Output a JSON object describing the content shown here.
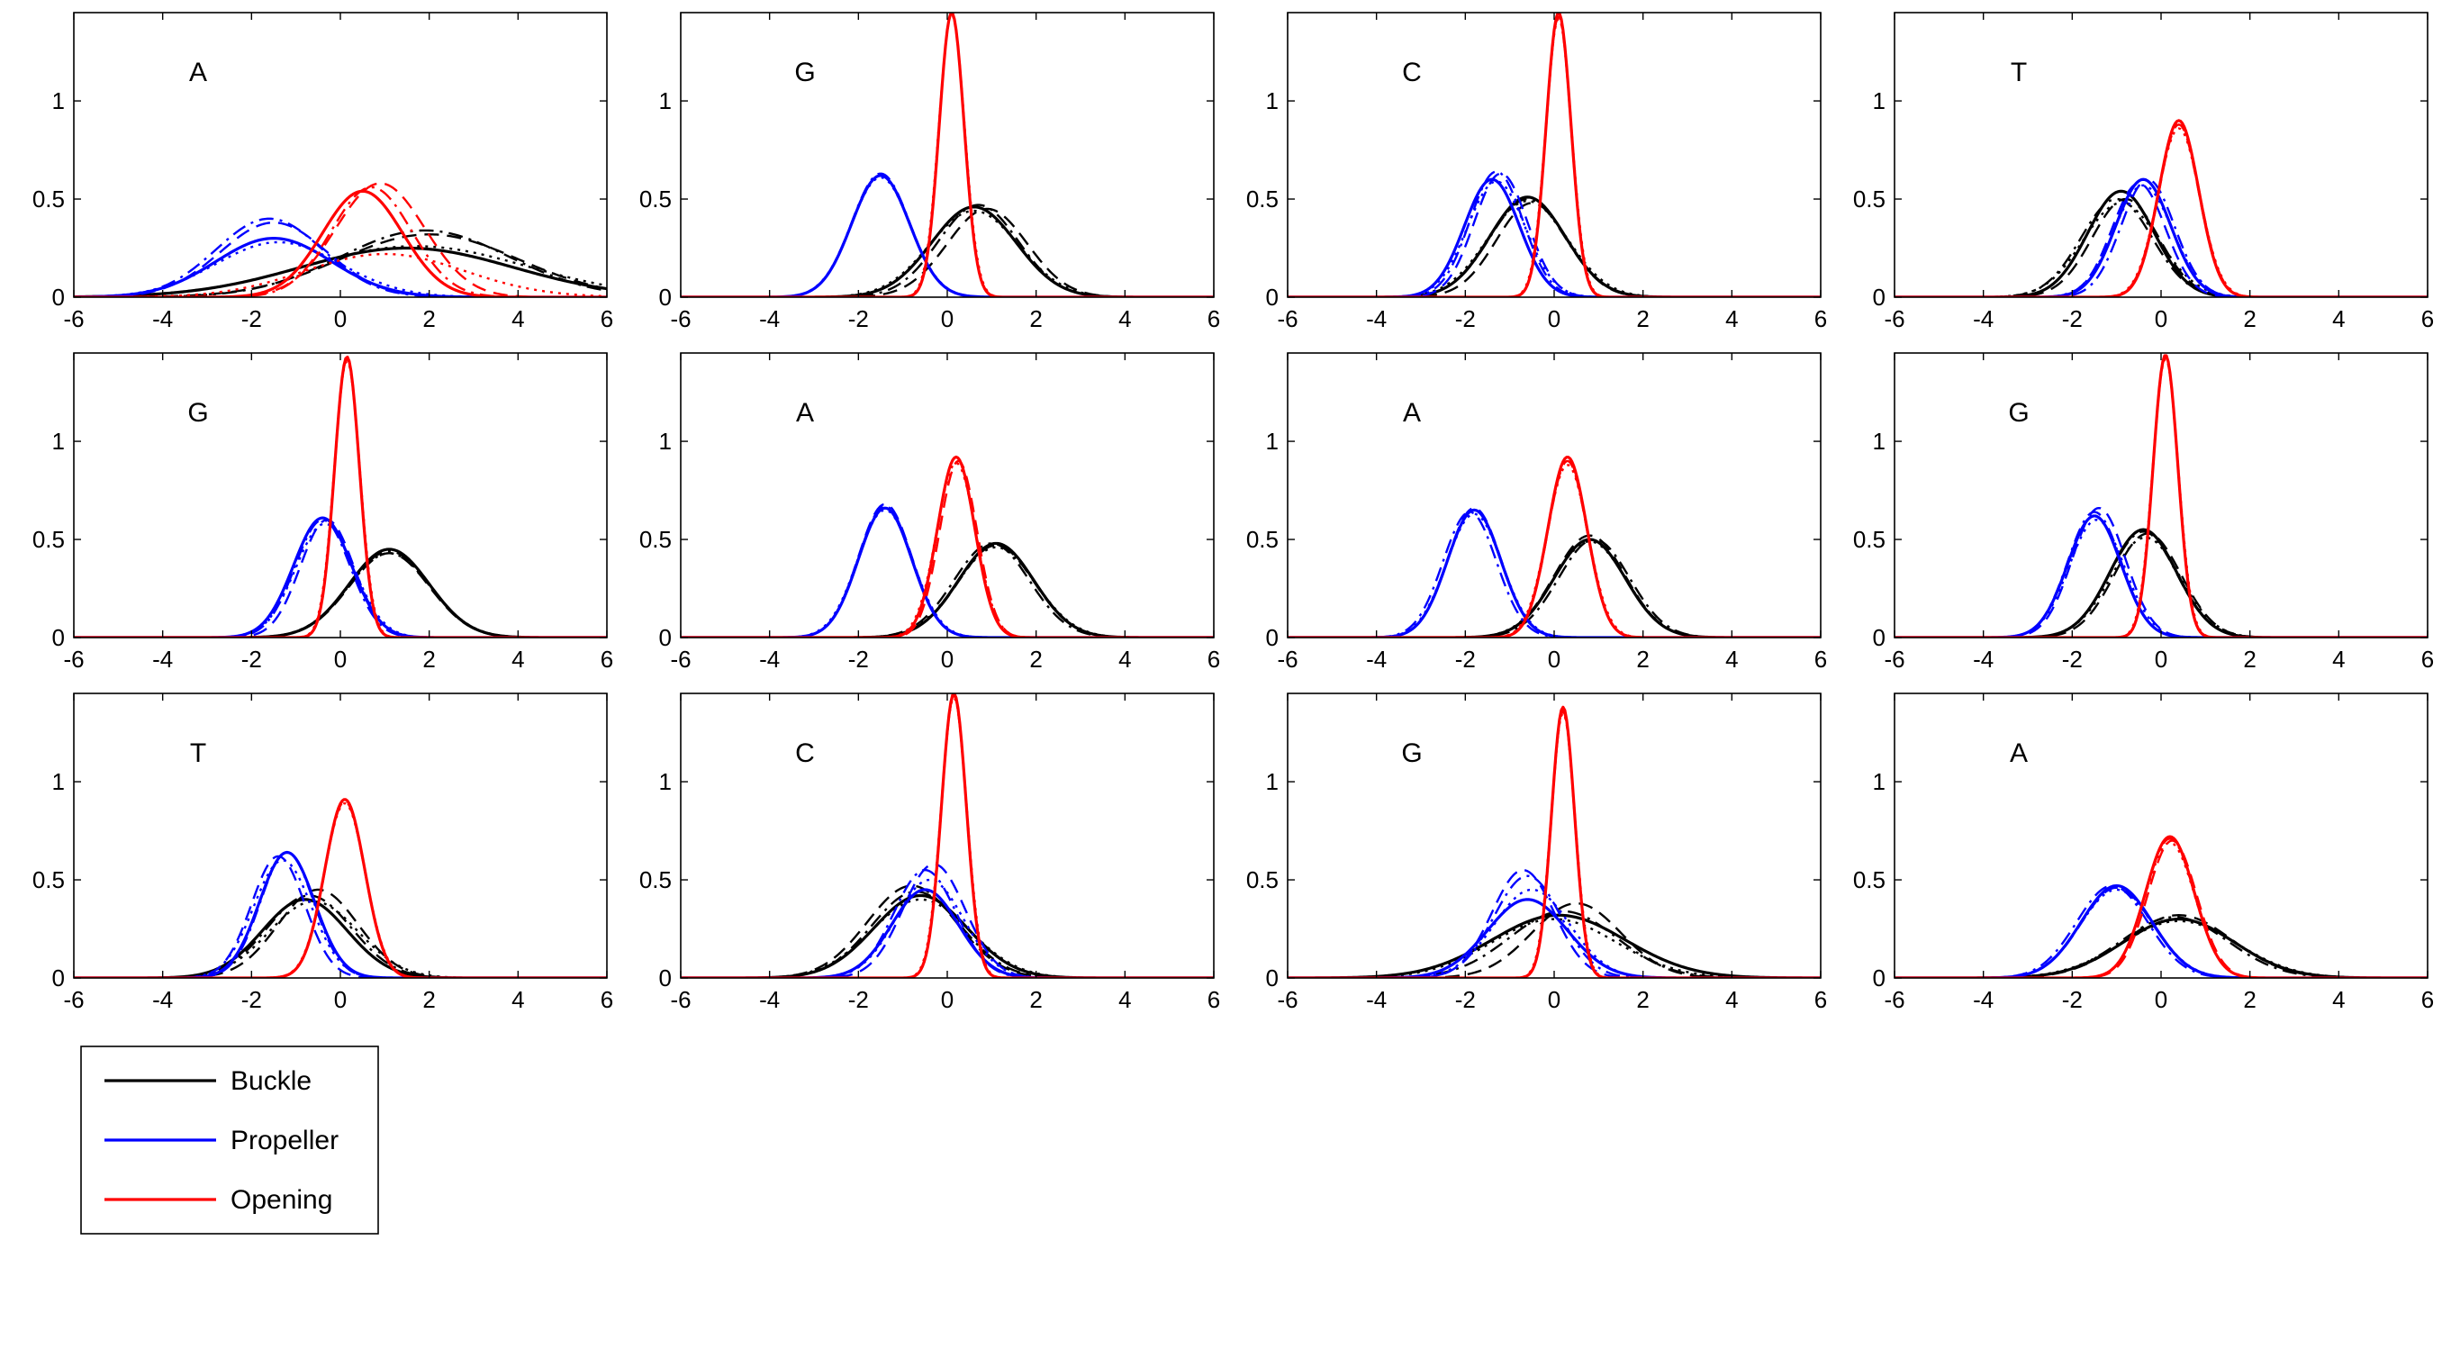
{
  "chart_data": {
    "type": "line",
    "layout": {
      "rows": 3,
      "cols": 4
    },
    "xlim": [
      -6,
      6
    ],
    "ylim": [
      0,
      1.45
    ],
    "xticks": [
      -6,
      -4,
      -2,
      0,
      2,
      4,
      6
    ],
    "yticks": [
      0,
      0.5,
      1
    ],
    "legend": {
      "placement": "bottom-left",
      "entries": [
        {
          "label": "Buckle",
          "color": "#000000"
        },
        {
          "label": "Propeller",
          "color": "#0000ff"
        },
        {
          "label": "Opening",
          "color": "#ff0000"
        }
      ]
    },
    "line_styles": [
      "solid",
      "dashed",
      "dashdot",
      "dotted"
    ],
    "panels": [
      {
        "label": "A",
        "series": [
          {
            "param": "Buckle",
            "curves": [
              [
                1.5,
                2.4,
                0.25
              ],
              [
                2.0,
                2.0,
                0.32
              ],
              [
                1.9,
                1.9,
                0.34
              ],
              [
                1.7,
                2.5,
                0.26
              ]
            ]
          },
          {
            "param": "Propeller",
            "curves": [
              [
                -1.5,
                1.3,
                0.3
              ],
              [
                -1.5,
                1.2,
                0.38
              ],
              [
                -1.6,
                1.2,
                0.4
              ],
              [
                -1.4,
                1.4,
                0.28
              ]
            ]
          },
          {
            "param": "Opening",
            "curves": [
              [
                0.5,
                0.9,
                0.54
              ],
              [
                0.9,
                1.0,
                0.58
              ],
              [
                0.7,
                0.9,
                0.56
              ],
              [
                1.0,
                1.8,
                0.22
              ]
            ]
          }
        ]
      },
      {
        "label": "G",
        "series": [
          {
            "param": "Buckle",
            "curves": [
              [
                0.6,
                0.95,
                0.46
              ],
              [
                0.9,
                0.9,
                0.45
              ],
              [
                0.7,
                0.9,
                0.47
              ],
              [
                0.6,
                1.0,
                0.44
              ]
            ]
          },
          {
            "param": "Propeller",
            "curves": [
              [
                -1.5,
                0.65,
                0.62
              ],
              [
                -1.5,
                0.65,
                0.62
              ],
              [
                -1.5,
                0.65,
                0.63
              ],
              [
                -1.5,
                0.66,
                0.61
              ]
            ]
          },
          {
            "param": "Opening",
            "curves": [
              [
                0.1,
                0.28,
                1.45
              ],
              [
                0.1,
                0.28,
                1.45
              ],
              [
                0.1,
                0.28,
                1.45
              ],
              [
                0.1,
                0.29,
                1.44
              ]
            ]
          }
        ]
      },
      {
        "label": "C",
        "series": [
          {
            "param": "Buckle",
            "curves": [
              [
                -0.6,
                0.85,
                0.51
              ],
              [
                -0.5,
                0.8,
                0.48
              ],
              [
                -0.6,
                0.85,
                0.5
              ],
              [
                -0.6,
                0.9,
                0.49
              ]
            ]
          },
          {
            "param": "Propeller",
            "curves": [
              [
                -1.4,
                0.62,
                0.6
              ],
              [
                -1.2,
                0.6,
                0.63
              ],
              [
                -1.3,
                0.6,
                0.64
              ],
              [
                -1.3,
                0.65,
                0.59
              ]
            ]
          },
          {
            "param": "Opening",
            "curves": [
              [
                0.1,
                0.28,
                1.45
              ],
              [
                0.1,
                0.28,
                1.45
              ],
              [
                0.1,
                0.28,
                1.43
              ],
              [
                0.1,
                0.29,
                1.42
              ]
            ]
          }
        ]
      },
      {
        "label": "T",
        "series": [
          {
            "param": "Buckle",
            "curves": [
              [
                -0.9,
                0.75,
                0.54
              ],
              [
                -0.8,
                0.75,
                0.5
              ],
              [
                -1.0,
                0.8,
                0.5
              ],
              [
                -0.9,
                0.85,
                0.48
              ]
            ]
          },
          {
            "param": "Propeller",
            "curves": [
              [
                -0.4,
                0.62,
                0.6
              ],
              [
                -0.5,
                0.6,
                0.58
              ],
              [
                -0.3,
                0.6,
                0.6
              ],
              [
                -0.4,
                0.65,
                0.57
              ]
            ]
          },
          {
            "param": "Opening",
            "curves": [
              [
                0.4,
                0.45,
                0.9
              ],
              [
                0.4,
                0.45,
                0.88
              ],
              [
                0.4,
                0.46,
                0.89
              ],
              [
                0.4,
                0.47,
                0.86
              ]
            ]
          }
        ]
      },
      {
        "label": "G",
        "series": [
          {
            "param": "Buckle",
            "curves": [
              [
                1.1,
                0.9,
                0.45
              ],
              [
                1.1,
                0.9,
                0.43
              ],
              [
                1.1,
                0.9,
                0.44
              ],
              [
                1.1,
                0.92,
                0.43
              ]
            ]
          },
          {
            "param": "Propeller",
            "curves": [
              [
                -0.4,
                0.65,
                0.61
              ],
              [
                -0.3,
                0.6,
                0.6
              ],
              [
                -0.4,
                0.62,
                0.6
              ],
              [
                -0.35,
                0.66,
                0.58
              ]
            ]
          },
          {
            "param": "Opening",
            "curves": [
              [
                0.15,
                0.28,
                1.43
              ],
              [
                0.15,
                0.28,
                1.43
              ],
              [
                0.15,
                0.28,
                1.42
              ],
              [
                0.15,
                0.29,
                1.41
              ]
            ]
          }
        ]
      },
      {
        "label": "A",
        "series": [
          {
            "param": "Buckle",
            "curves": [
              [
                1.1,
                0.85,
                0.48
              ],
              [
                1.1,
                0.85,
                0.47
              ],
              [
                1.0,
                0.85,
                0.48
              ],
              [
                1.1,
                0.88,
                0.46
              ]
            ]
          },
          {
            "param": "Propeller",
            "curves": [
              [
                -1.4,
                0.6,
                0.66
              ],
              [
                -1.4,
                0.6,
                0.68
              ],
              [
                -1.4,
                0.6,
                0.67
              ],
              [
                -1.4,
                0.62,
                0.65
              ]
            ]
          },
          {
            "param": "Opening",
            "curves": [
              [
                0.2,
                0.42,
                0.92
              ],
              [
                0.25,
                0.42,
                0.9
              ],
              [
                0.2,
                0.42,
                0.92
              ],
              [
                0.2,
                0.44,
                0.89
              ]
            ]
          }
        ]
      },
      {
        "label": "A",
        "series": [
          {
            "param": "Buckle",
            "curves": [
              [
                0.8,
                0.8,
                0.5
              ],
              [
                0.8,
                0.8,
                0.52
              ],
              [
                0.9,
                0.8,
                0.5
              ],
              [
                0.8,
                0.82,
                0.49
              ]
            ]
          },
          {
            "param": "Propeller",
            "curves": [
              [
                -1.8,
                0.6,
                0.65
              ],
              [
                -1.8,
                0.6,
                0.66
              ],
              [
                -1.9,
                0.6,
                0.64
              ],
              [
                -1.8,
                0.62,
                0.63
              ]
            ]
          },
          {
            "param": "Opening",
            "curves": [
              [
                0.3,
                0.44,
                0.92
              ],
              [
                0.3,
                0.44,
                0.9
              ],
              [
                0.3,
                0.44,
                0.91
              ],
              [
                0.3,
                0.46,
                0.88
              ]
            ]
          }
        ]
      },
      {
        "label": "G",
        "series": [
          {
            "param": "Buckle",
            "curves": [
              [
                -0.4,
                0.75,
                0.55
              ],
              [
                -0.3,
                0.75,
                0.53
              ],
              [
                -0.4,
                0.75,
                0.54
              ],
              [
                -0.35,
                0.78,
                0.51
              ]
            ]
          },
          {
            "param": "Propeller",
            "curves": [
              [
                -1.5,
                0.6,
                0.62
              ],
              [
                -1.4,
                0.6,
                0.66
              ],
              [
                -1.5,
                0.6,
                0.64
              ],
              [
                -1.45,
                0.62,
                0.6
              ]
            ]
          },
          {
            "param": "Opening",
            "curves": [
              [
                0.1,
                0.28,
                1.44
              ],
              [
                0.1,
                0.28,
                1.44
              ],
              [
                0.1,
                0.28,
                1.43
              ],
              [
                0.1,
                0.29,
                1.42
              ]
            ]
          }
        ]
      },
      {
        "label": "T",
        "series": [
          {
            "param": "Buckle",
            "curves": [
              [
                -0.8,
                0.95,
                0.4
              ],
              [
                -0.5,
                0.9,
                0.45
              ],
              [
                -0.7,
                0.95,
                0.42
              ],
              [
                -0.6,
                1.0,
                0.39
              ]
            ]
          },
          {
            "param": "Propeller",
            "curves": [
              [
                -1.2,
                0.62,
                0.64
              ],
              [
                -1.4,
                0.6,
                0.62
              ],
              [
                -1.2,
                0.6,
                0.64
              ],
              [
                -1.3,
                0.65,
                0.6
              ]
            ]
          },
          {
            "param": "Opening",
            "curves": [
              [
                0.1,
                0.45,
                0.91
              ],
              [
                0.1,
                0.45,
                0.9
              ],
              [
                0.1,
                0.45,
                0.91
              ],
              [
                0.1,
                0.46,
                0.89
              ]
            ]
          }
        ]
      },
      {
        "label": "C",
        "series": [
          {
            "param": "Buckle",
            "curves": [
              [
                -0.6,
                1.05,
                0.42
              ],
              [
                -0.8,
                1.0,
                0.47
              ],
              [
                -0.7,
                1.0,
                0.44
              ],
              [
                -0.6,
                1.1,
                0.4
              ]
            ]
          },
          {
            "param": "Propeller",
            "curves": [
              [
                -0.5,
                0.75,
                0.45
              ],
              [
                -0.3,
                0.7,
                0.58
              ],
              [
                -0.5,
                0.7,
                0.55
              ],
              [
                -0.4,
                0.76,
                0.5
              ]
            ]
          },
          {
            "param": "Opening",
            "curves": [
              [
                0.15,
                0.28,
                1.45
              ],
              [
                0.15,
                0.28,
                1.44
              ],
              [
                0.15,
                0.28,
                1.44
              ],
              [
                0.15,
                0.29,
                1.43
              ]
            ]
          }
        ]
      },
      {
        "label": "G",
        "series": [
          {
            "param": "Buckle",
            "curves": [
              [
                0.1,
                1.5,
                0.32
              ],
              [
                0.5,
                1.0,
                0.38
              ],
              [
                0.2,
                1.2,
                0.34
              ],
              [
                0.0,
                1.4,
                0.3
              ]
            ]
          },
          {
            "param": "Propeller",
            "curves": [
              [
                -0.6,
                0.9,
                0.4
              ],
              [
                -0.7,
                0.7,
                0.55
              ],
              [
                -0.6,
                0.75,
                0.52
              ],
              [
                -0.5,
                0.85,
                0.45
              ]
            ]
          },
          {
            "param": "Opening",
            "curves": [
              [
                0.2,
                0.26,
                1.38
              ],
              [
                0.2,
                0.26,
                1.37
              ],
              [
                0.2,
                0.26,
                1.36
              ],
              [
                0.2,
                0.27,
                1.35
              ]
            ]
          }
        ]
      },
      {
        "label": "A",
        "series": [
          {
            "param": "Buckle",
            "curves": [
              [
                0.4,
                1.25,
                0.3
              ],
              [
                0.4,
                1.2,
                0.32
              ],
              [
                0.3,
                1.2,
                0.31
              ],
              [
                0.4,
                1.3,
                0.29
              ]
            ]
          },
          {
            "param": "Propeller",
            "curves": [
              [
                -1.0,
                0.8,
                0.47
              ],
              [
                -1.0,
                0.8,
                0.46
              ],
              [
                -1.1,
                0.8,
                0.47
              ],
              [
                -1.0,
                0.82,
                0.45
              ]
            ]
          },
          {
            "param": "Opening",
            "curves": [
              [
                0.2,
                0.55,
                0.72
              ],
              [
                0.25,
                0.55,
                0.7
              ],
              [
                0.2,
                0.55,
                0.71
              ],
              [
                0.2,
                0.56,
                0.69
              ]
            ]
          }
        ]
      }
    ]
  }
}
